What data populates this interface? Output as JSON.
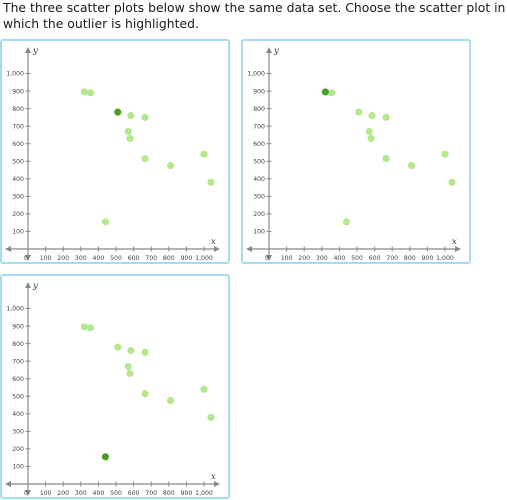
{
  "question": {
    "text": "The three scatter plots below show the same data set. Choose the scatter plot in which the outlier is highlighted."
  },
  "colors": {
    "border": "#a6ddec",
    "point": "#b3e88c",
    "highlight": "#4a9e2a",
    "axis": "#888888"
  },
  "axes": {
    "x_name": "x",
    "y_name": "y",
    "origin_label": "0",
    "x_ticks": [
      "100",
      "200",
      "300",
      "400",
      "500",
      "600",
      "700",
      "800",
      "900",
      "1,000"
    ],
    "y_ticks": [
      "100",
      "200",
      "300",
      "400",
      "500",
      "600",
      "700",
      "800",
      "900",
      "1,000"
    ]
  },
  "chart_data": [
    {
      "type": "scatter",
      "xlabel": "x",
      "ylabel": "y",
      "xlim": [
        0,
        1000
      ],
      "ylim": [
        0,
        1000
      ],
      "points": [
        {
          "x": 320,
          "y": 895
        },
        {
          "x": 355,
          "y": 890
        },
        {
          "x": 510,
          "y": 780
        },
        {
          "x": 585,
          "y": 760
        },
        {
          "x": 665,
          "y": 750
        },
        {
          "x": 570,
          "y": 670
        },
        {
          "x": 580,
          "y": 630
        },
        {
          "x": 665,
          "y": 515
        },
        {
          "x": 810,
          "y": 475
        },
        {
          "x": 1000,
          "y": 540
        },
        {
          "x": 1040,
          "y": 380
        },
        {
          "x": 440,
          "y": 155
        }
      ],
      "highlighted_index": 2
    },
    {
      "type": "scatter",
      "xlabel": "x",
      "ylabel": "y",
      "xlim": [
        0,
        1000
      ],
      "ylim": [
        0,
        1000
      ],
      "points": [
        {
          "x": 320,
          "y": 895
        },
        {
          "x": 355,
          "y": 890
        },
        {
          "x": 510,
          "y": 780
        },
        {
          "x": 585,
          "y": 760
        },
        {
          "x": 665,
          "y": 750
        },
        {
          "x": 570,
          "y": 670
        },
        {
          "x": 580,
          "y": 630
        },
        {
          "x": 665,
          "y": 515
        },
        {
          "x": 810,
          "y": 475
        },
        {
          "x": 1000,
          "y": 540
        },
        {
          "x": 1040,
          "y": 380
        },
        {
          "x": 440,
          "y": 155
        }
      ],
      "highlighted_index": 0
    },
    {
      "type": "scatter",
      "xlabel": "x",
      "ylabel": "y",
      "xlim": [
        0,
        1000
      ],
      "ylim": [
        0,
        1000
      ],
      "points": [
        {
          "x": 320,
          "y": 895
        },
        {
          "x": 355,
          "y": 890
        },
        {
          "x": 510,
          "y": 780
        },
        {
          "x": 585,
          "y": 760
        },
        {
          "x": 665,
          "y": 750
        },
        {
          "x": 570,
          "y": 670
        },
        {
          "x": 580,
          "y": 630
        },
        {
          "x": 665,
          "y": 515
        },
        {
          "x": 810,
          "y": 475
        },
        {
          "x": 1000,
          "y": 540
        },
        {
          "x": 1040,
          "y": 380
        },
        {
          "x": 440,
          "y": 155
        }
      ],
      "highlighted_index": 11
    }
  ]
}
